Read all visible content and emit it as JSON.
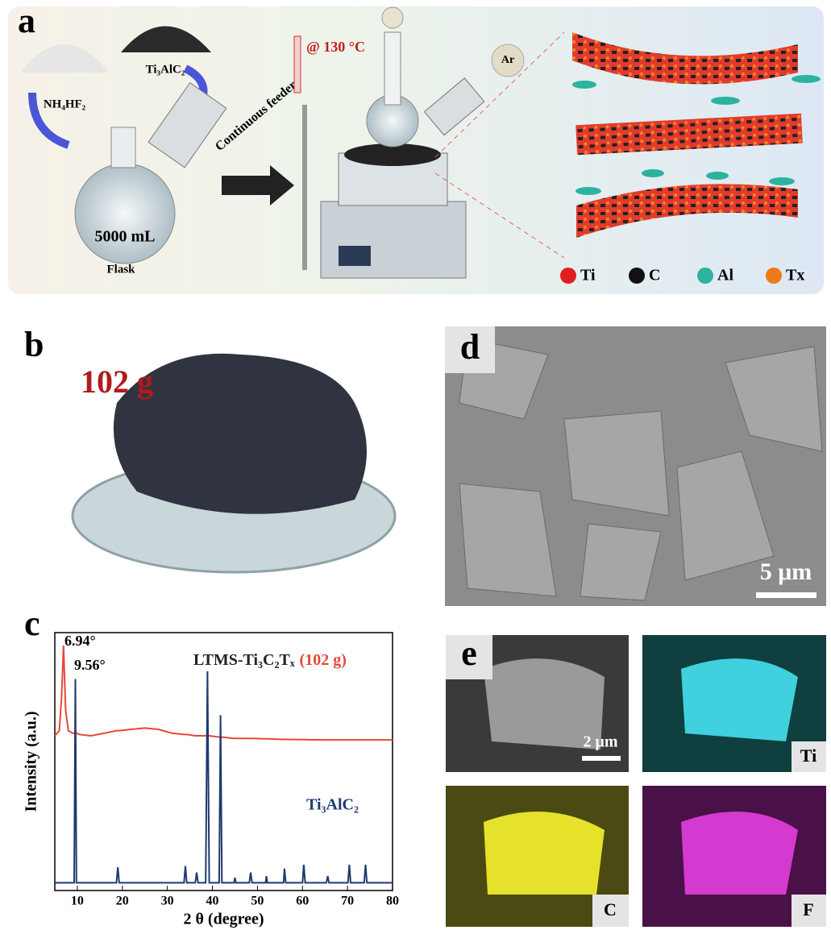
{
  "panel_a": {
    "label": "a",
    "reagents": [
      "NH₄HF₂",
      "Ti₃AlC₂"
    ],
    "feeder": "Continuous feeder",
    "volume": "5000 mL",
    "flask": "Flask",
    "temperature": "@ 130 °C",
    "gas": "Ar",
    "legend": [
      "Ti",
      "C",
      "Al",
      "Tx"
    ]
  },
  "panel_b": {
    "label": "b",
    "mass": "102 g"
  },
  "panel_c": {
    "label": "c"
  },
  "chart_data": {
    "type": "line",
    "xlabel": "2 θ (degree)",
    "ylabel": "Intensity (a.u.)",
    "x": [
      5,
      6,
      6.5,
      6.94,
      7.4,
      8,
      9,
      9.3,
      9.56,
      9.8,
      10.5,
      13,
      16,
      18.7,
      19,
      19.3,
      22,
      25,
      28,
      31,
      33.7,
      34,
      34.3,
      36.2,
      36.5,
      36.8,
      38.5,
      38.9,
      39.3,
      41.5,
      41.8,
      42.1,
      44.8,
      45,
      45.2,
      48.2,
      48.5,
      48.8,
      51.8,
      52,
      52.2,
      55.8,
      56,
      56.3,
      60,
      60.3,
      60.6,
      65.3,
      65.6,
      65.9,
      70.1,
      70.4,
      70.7,
      73.7,
      74,
      74.3,
      77,
      80
    ],
    "series": [
      {
        "name": "LTMS-Ti₃C₂Tₓ",
        "note": "(102 g)",
        "color": "#e8473a",
        "values": [
          60,
          62,
          75,
          95,
          70,
          62,
          61,
          61,
          61,
          61,
          60.5,
          60,
          61,
          62,
          62,
          62,
          62.5,
          63,
          62.5,
          61,
          60.5,
          60.5,
          60.5,
          60,
          60,
          60,
          60,
          60,
          60,
          59.5,
          59.5,
          59.5,
          59,
          59,
          59,
          59,
          59,
          59,
          58.8,
          58.8,
          58.8,
          58.6,
          58.6,
          58.6,
          58.5,
          58.5,
          58.5,
          58.4,
          58.4,
          58.4,
          58.4,
          58.4,
          58.4,
          58.4,
          58.4,
          58.4,
          58.4,
          58.4
        ]
      },
      {
        "name": "Ti₃AlC₂",
        "color": "#1f3a6e",
        "values": [
          3,
          3,
          3,
          3,
          3,
          3,
          3,
          3,
          82,
          3,
          3,
          3,
          3,
          3,
          9,
          3,
          3,
          3,
          3,
          3,
          3,
          9.5,
          3,
          3,
          7,
          3,
          3,
          85,
          3,
          3,
          68,
          3,
          3,
          5,
          3,
          3,
          7,
          3,
          3,
          5.6,
          3,
          3,
          8.5,
          3,
          3,
          10,
          3,
          3,
          5.6,
          3,
          3,
          10,
          3,
          3,
          10,
          3,
          3,
          3
        ]
      }
    ],
    "annotations": [
      "6.94°",
      "9.56°"
    ],
    "xlim": [
      5,
      80
    ],
    "xticks": [
      10,
      20,
      30,
      40,
      50,
      60,
      70,
      80
    ],
    "ylim": [
      0,
      100
    ]
  },
  "panel_d": {
    "label": "d",
    "scale_bar": "5 μm"
  },
  "panel_e": {
    "label": "e",
    "scale_bar": "2 μm",
    "maps": [
      "Ti",
      "C",
      "F"
    ]
  }
}
